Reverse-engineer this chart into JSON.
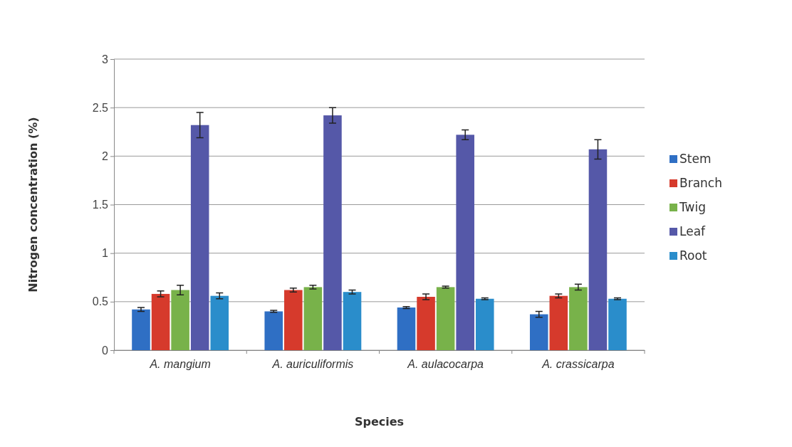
{
  "chart_data": {
    "type": "bar",
    "xlabel": "Species",
    "ylabel": "Nitrogen concentration (%)",
    "categories": [
      "A. mangium",
      "A. auriculiformis",
      "A. aulacocarpa",
      "A. crassicarpa"
    ],
    "series": [
      {
        "name": "Stem",
        "color": "#2f6fc4",
        "values": [
          0.42,
          0.4,
          0.44,
          0.37
        ],
        "errors": [
          0.02,
          0.01,
          0.01,
          0.03
        ]
      },
      {
        "name": "Branch",
        "color": "#d63a2c",
        "values": [
          0.58,
          0.62,
          0.55,
          0.56
        ],
        "errors": [
          0.03,
          0.02,
          0.03,
          0.02
        ]
      },
      {
        "name": "Twig",
        "color": "#78b24a",
        "values": [
          0.62,
          0.65,
          0.65,
          0.65
        ],
        "errors": [
          0.05,
          0.02,
          0.01,
          0.03
        ]
      },
      {
        "name": "Leaf",
        "color": "#5558a8",
        "values": [
          2.32,
          2.42,
          2.22,
          2.07
        ],
        "errors": [
          0.13,
          0.08,
          0.05,
          0.1
        ]
      },
      {
        "name": "Root",
        "color": "#2a8dcb",
        "values": [
          0.56,
          0.6,
          0.53,
          0.53
        ],
        "errors": [
          0.03,
          0.02,
          0.01,
          0.01
        ]
      }
    ],
    "ylim": [
      0,
      3
    ],
    "yticks": [
      0,
      0.5,
      1,
      1.5,
      2,
      2.5,
      3
    ],
    "grid": "y",
    "legend": "right"
  }
}
